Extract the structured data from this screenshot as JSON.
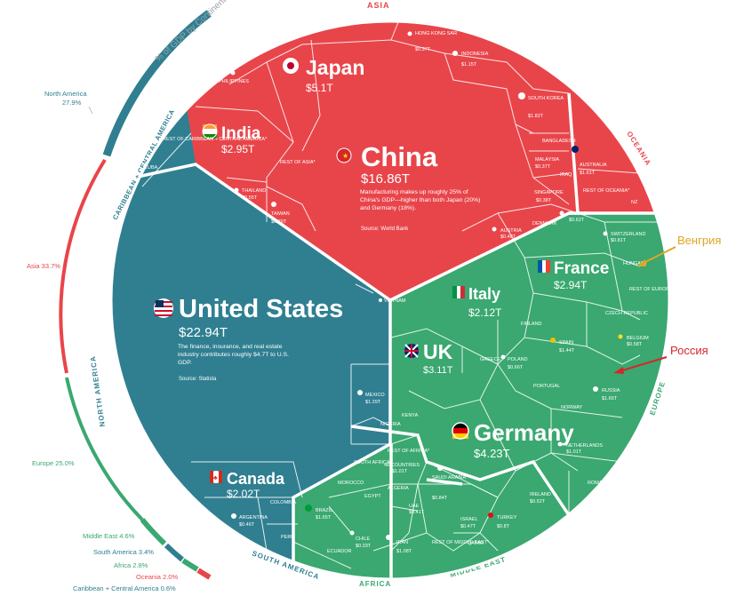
{
  "chart_data": {
    "type": "voronoi-treemap",
    "ring_title": "% of GDP by Continent",
    "continents": [
      {
        "name": "North America",
        "legend": "North America 27.9%",
        "share": 27.9,
        "color": "#2f7f91"
      },
      {
        "name": "Asia",
        "legend": "Asia 33.7%",
        "share": 33.7,
        "color": "#e8454a"
      },
      {
        "name": "Europe",
        "legend": "Europe 25.0%",
        "share": 25.0,
        "color": "#3aa870"
      },
      {
        "name": "Middle East",
        "legend": "Middle East 4.6%",
        "share": 4.6,
        "color": "#3aa870"
      },
      {
        "name": "South America",
        "legend": "South America 3.4%",
        "share": 3.4,
        "color": "#2f7f91"
      },
      {
        "name": "Africa",
        "legend": "Africa 2.8%",
        "share": 2.8,
        "color": "#3aa870"
      },
      {
        "name": "Oceania",
        "legend": "Oceania 2.0%",
        "share": 2.0,
        "color": "#e8454a"
      },
      {
        "name": "Caribbean + Central America",
        "legend": "Caribbean + Central America 0.6%",
        "share": 0.6,
        "color": "#2f7f91"
      }
    ],
    "region_labels": {
      "asia": "ASIA",
      "oceania": "OCEANIA",
      "europe": "EUROPE",
      "middle_east": "MIDDLE EAST",
      "africa": "AFRICA",
      "south_america": "SOUTH AMERICA",
      "north_america": "NORTH AMERICA",
      "caribbean": "CARIBBEAN + CENTRAL AMERICA"
    },
    "countries_large": [
      {
        "id": "china",
        "name": "China",
        "value": "$16.86T",
        "gdp_t": 16.86
      },
      {
        "id": "us",
        "name": "United States",
        "value": "$22.94T",
        "gdp_t": 22.94
      },
      {
        "id": "japan",
        "name": "Japan",
        "value": "$5.1T",
        "gdp_t": 5.1
      },
      {
        "id": "germany",
        "name": "Germany",
        "value": "$4.23T",
        "gdp_t": 4.23
      },
      {
        "id": "uk",
        "name": "UK",
        "value": "$3.11T",
        "gdp_t": 3.11
      },
      {
        "id": "india",
        "name": "India",
        "value": "$2.95T",
        "gdp_t": 2.95
      },
      {
        "id": "france",
        "name": "France",
        "value": "$2.94T",
        "gdp_t": 2.94
      },
      {
        "id": "italy",
        "name": "Italy",
        "value": "$2.12T",
        "gdp_t": 2.12
      },
      {
        "id": "canada",
        "name": "Canada",
        "value": "$2.02T",
        "gdp_t": 2.02
      }
    ],
    "countries_small": [
      {
        "name": "HONG KONG SAR",
        "value": "$0.37T"
      },
      {
        "name": "INDONESIA",
        "value": "$1.15T"
      },
      {
        "name": "SOUTH KOREA",
        "value": "$1.82T"
      },
      {
        "name": "BANGLADESH",
        "value": "$0.36T"
      },
      {
        "name": "MALAYSIA",
        "value": "$0.37T"
      },
      {
        "name": "IRAQ",
        "value": "$0.19T"
      },
      {
        "name": "SINGAPORE",
        "value": "$0.38T"
      },
      {
        "name": "AUSTRALIA",
        "value": "$1.61T"
      },
      {
        "name": "REST OF OCEANIA*",
        "value": "$0.05T"
      },
      {
        "name": "NZ",
        "value": "$0.23T"
      },
      {
        "name": "PHILIPPINES",
        "value": "$0.39T"
      },
      {
        "name": "REST OF ASIA*",
        "value": "$0.59T"
      },
      {
        "name": "THAILAND",
        "value": "$0.55T"
      },
      {
        "name": "TAIWAN",
        "value": "$0.79T"
      },
      {
        "name": "VIETNAM",
        "value": "$0.37T"
      },
      {
        "name": "REST OF CARIBBEAN + CENTRAL AMERICA*",
        "value": "$0.29T"
      },
      {
        "name": "CUBA",
        "value": "$0.11T"
      },
      {
        "name": "MEXICO",
        "value": "$1.29T"
      },
      {
        "name": "ARGENTINA",
        "value": "$0.46T"
      },
      {
        "name": "COLOMBIA",
        "value": "$0.30T"
      },
      {
        "name": "BRAZIL",
        "value": "$1.65T"
      },
      {
        "name": "PERU",
        "value": "$0.22T"
      },
      {
        "name": "CHILE",
        "value": "$0.33T"
      },
      {
        "name": "ECUADOR",
        "value": "$0.10T"
      },
      {
        "name": "SWEDEN",
        "value": "$0.62T"
      },
      {
        "name": "SWITZERLAND",
        "value": "$0.81T"
      },
      {
        "name": "DENMARK",
        "value": "$0.39T"
      },
      {
        "name": "AUSTRIA",
        "value": "$0.48T"
      },
      {
        "name": "HUNGARY",
        "value": "$0.18T"
      },
      {
        "name": "REST OF EUROPE*",
        "value": "$1.01T"
      },
      {
        "name": "CZECH REPUBLIC",
        "value": "$0.28T"
      },
      {
        "name": "FINLAND",
        "value": "$0.30T"
      },
      {
        "name": "SPAIN",
        "value": "$1.44T"
      },
      {
        "name": "BELGIUM",
        "value": "$0.58T"
      },
      {
        "name": "POLAND",
        "value": "$0.66T"
      },
      {
        "name": "PORTUGAL",
        "value": "$0.25T"
      },
      {
        "name": "RUSSIA",
        "value": "$1.65T"
      },
      {
        "name": "NORWAY",
        "value": "$0.45T"
      },
      {
        "name": "NETHERLANDS",
        "value": "$1.01T"
      },
      {
        "name": "ROMANIA",
        "value": "$0.29T"
      },
      {
        "name": "IRELAND",
        "value": "$0.52T"
      },
      {
        "name": "GREECE",
        "value": "$0.22T"
      },
      {
        "name": "NIGERIA",
        "value": "$0.51T"
      },
      {
        "name": "REST OF AFRICA*",
        "value": "$1.01T",
        "note": "48 COUNTRIES"
      },
      {
        "name": "SOUTH AFRICA",
        "value": "$0.42T"
      },
      {
        "name": "EGYPT",
        "value": "$0.39T"
      },
      {
        "name": "ALGERIA",
        "value": "$0.17T"
      },
      {
        "name": "MOROCCO",
        "value": "$0.13T"
      },
      {
        "name": "KENYA",
        "value": "$0.11T"
      },
      {
        "name": "SAUDI ARABIA",
        "value": "$0.84T"
      },
      {
        "name": "UAE",
        "value": "$0.41T"
      },
      {
        "name": "ISRAEL",
        "value": "$0.47T"
      },
      {
        "name": "TURKEY",
        "value": "$0.8T"
      },
      {
        "name": "IRAN",
        "value": "$1.08T"
      },
      {
        "name": "REST OF MIDDLE EAST*",
        "value": "$0.37T"
      },
      {
        "name": "QATAR",
        "value": "$0.17T"
      }
    ],
    "notes": {
      "china": "Manufacturing makes up roughly 25% of China's GDP—higher than both Japan (20%) and Germany (18%).",
      "china_source": "Source: World Bank",
      "us": "The finance, insurance, and real estate industry contributes roughly $4.7T to U.S. GDP.",
      "us_source": "Source: Statista"
    },
    "annotations": [
      {
        "text": "Венгрия",
        "color": "#e0a526",
        "target": "HUNGARY"
      },
      {
        "text": "Россия",
        "color": "#d7262b",
        "target": "RUSSIA"
      }
    ]
  }
}
